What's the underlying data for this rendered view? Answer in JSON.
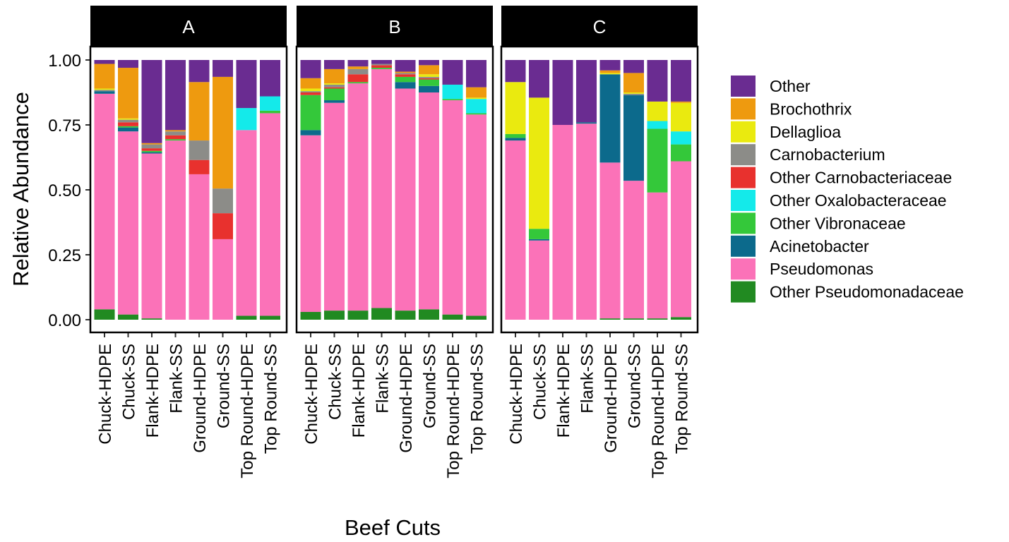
{
  "chart_data": {
    "type": "bar",
    "stacked": true,
    "xlabel": "Beef Cuts",
    "ylabel": "Relative Abundance",
    "ylim": [
      0,
      1
    ],
    "y_ticks": [
      "0.00",
      "0.25",
      "0.50",
      "0.75",
      "1.00"
    ],
    "y_tick_values": [
      0,
      0.25,
      0.5,
      0.75,
      1.0
    ],
    "legend_position": "right",
    "categories": [
      "Chuck-HDPE",
      "Chuck-SS",
      "Flank-HDPE",
      "Flank-SS",
      "Ground-HDPE",
      "Ground-SS",
      "Top Round-HDPE",
      "Top Round-SS"
    ],
    "legend": [
      {
        "name": "Other",
        "color": "#6A2C91"
      },
      {
        "name": "Brochothrix",
        "color": "#EE9A0F"
      },
      {
        "name": "Dellaglioa",
        "color": "#EAEA0F"
      },
      {
        "name": "Carnobacterium",
        "color": "#8C8C88"
      },
      {
        "name": "Other Carnobacteriaceae",
        "color": "#E8312E"
      },
      {
        "name": "Other Oxalobacteraceae",
        "color": "#14EAEA"
      },
      {
        "name": "Other Vibronaceae",
        "color": "#34C83A"
      },
      {
        "name": "Acinetobacter",
        "color": "#0C6A8C"
      },
      {
        "name": "Pseudomonas",
        "color": "#FB72B8"
      },
      {
        "name": "Other Pseudomonadaceae",
        "color": "#218A21"
      }
    ],
    "stack_order_bottom_to_top": [
      "Other Pseudomonadaceae",
      "Pseudomonas",
      "Acinetobacter",
      "Other Vibronaceae",
      "Other Oxalobacteraceae",
      "Other Carnobacteriaceae",
      "Carnobacterium",
      "Dellaglioa",
      "Brochothrix",
      "Other"
    ],
    "panels": [
      {
        "label": "A",
        "bars": [
          {
            "Other Pseudomonadaceae": 0.04,
            "Pseudomonas": 0.83,
            "Acinetobacter": 0.01,
            "Other Vibronaceae": 0.0,
            "Other Oxalobacteraceae": 0.0,
            "Other Carnobacteriaceae": 0.0,
            "Carnobacterium": 0.005,
            "Dellaglioa": 0.005,
            "Brochothrix": 0.095,
            "Other": 0.015
          },
          {
            "Other Pseudomonadaceae": 0.02,
            "Pseudomonas": 0.705,
            "Acinetobacter": 0.015,
            "Other Vibronaceae": 0.005,
            "Other Oxalobacteraceae": 0.0,
            "Other Carnobacteriaceae": 0.015,
            "Carnobacterium": 0.01,
            "Dellaglioa": 0.005,
            "Brochothrix": 0.195,
            "Other": 0.03
          },
          {
            "Other Pseudomonadaceae": 0.005,
            "Pseudomonas": 0.635,
            "Acinetobacter": 0.005,
            "Other Vibronaceae": 0.005,
            "Other Oxalobacteraceae": 0.0,
            "Other Carnobacteriaceae": 0.01,
            "Carnobacterium": 0.015,
            "Dellaglioa": 0.0,
            "Brochothrix": 0.005,
            "Other": 0.32
          },
          {
            "Other Pseudomonadaceae": 0.0,
            "Pseudomonas": 0.69,
            "Acinetobacter": 0.0,
            "Other Vibronaceae": 0.005,
            "Other Oxalobacteraceae": 0.0,
            "Other Carnobacteriaceae": 0.015,
            "Carnobacterium": 0.015,
            "Dellaglioa": 0.0,
            "Brochothrix": 0.005,
            "Other": 0.27
          },
          {
            "Other Pseudomonadaceae": 0.0,
            "Pseudomonas": 0.56,
            "Acinetobacter": 0.0,
            "Other Vibronaceae": 0.0,
            "Other Oxalobacteraceae": 0.0,
            "Other Carnobacteriaceae": 0.055,
            "Carnobacterium": 0.075,
            "Dellaglioa": 0.0,
            "Brochothrix": 0.225,
            "Other": 0.085
          },
          {
            "Other Pseudomonadaceae": 0.0,
            "Pseudomonas": 0.31,
            "Acinetobacter": 0.0,
            "Other Vibronaceae": 0.0,
            "Other Oxalobacteraceae": 0.0,
            "Other Carnobacteriaceae": 0.1,
            "Carnobacterium": 0.095,
            "Dellaglioa": 0.0,
            "Brochothrix": 0.43,
            "Other": 0.065
          },
          {
            "Other Pseudomonadaceae": 0.015,
            "Pseudomonas": 0.715,
            "Acinetobacter": 0.0,
            "Other Vibronaceae": 0.0,
            "Other Oxalobacteraceae": 0.085,
            "Other Carnobacteriaceae": 0.0,
            "Carnobacterium": 0.0,
            "Dellaglioa": 0.0,
            "Brochothrix": 0.0,
            "Other": 0.185
          },
          {
            "Other Pseudomonadaceae": 0.015,
            "Pseudomonas": 0.78,
            "Acinetobacter": 0.0,
            "Other Vibronaceae": 0.01,
            "Other Oxalobacteraceae": 0.055,
            "Other Carnobacteriaceae": 0.0,
            "Carnobacterium": 0.0,
            "Dellaglioa": 0.0,
            "Brochothrix": 0.0,
            "Other": 0.14
          }
        ]
      },
      {
        "label": "B",
        "bars": [
          {
            "Other Pseudomonadaceae": 0.03,
            "Pseudomonas": 0.68,
            "Acinetobacter": 0.02,
            "Other Vibronaceae": 0.135,
            "Other Oxalobacteraceae": 0.0,
            "Other Carnobacteriaceae": 0.01,
            "Carnobacterium": 0.005,
            "Dellaglioa": 0.01,
            "Brochothrix": 0.04,
            "Other": 0.07
          },
          {
            "Other Pseudomonadaceae": 0.035,
            "Pseudomonas": 0.8,
            "Acinetobacter": 0.01,
            "Other Vibronaceae": 0.045,
            "Other Oxalobacteraceae": 0.0,
            "Other Carnobacteriaceae": 0.005,
            "Carnobacterium": 0.01,
            "Dellaglioa": 0.005,
            "Brochothrix": 0.055,
            "Other": 0.035
          },
          {
            "Other Pseudomonadaceae": 0.035,
            "Pseudomonas": 0.875,
            "Acinetobacter": 0.0,
            "Other Vibronaceae": 0.005,
            "Other Oxalobacteraceae": 0.0,
            "Other Carnobacteriaceae": 0.03,
            "Carnobacterium": 0.02,
            "Dellaglioa": 0.0,
            "Brochothrix": 0.01,
            "Other": 0.025
          },
          {
            "Other Pseudomonadaceae": 0.045,
            "Pseudomonas": 0.92,
            "Acinetobacter": 0.0,
            "Other Vibronaceae": 0.005,
            "Other Oxalobacteraceae": 0.0,
            "Other Carnobacteriaceae": 0.01,
            "Carnobacterium": 0.005,
            "Dellaglioa": 0.0,
            "Brochothrix": 0.0,
            "Other": 0.015
          },
          {
            "Other Pseudomonadaceae": 0.035,
            "Pseudomonas": 0.855,
            "Acinetobacter": 0.025,
            "Other Vibronaceae": 0.02,
            "Other Oxalobacteraceae": 0.0,
            "Other Carnobacteriaceae": 0.01,
            "Carnobacterium": 0.005,
            "Dellaglioa": 0.0,
            "Brochothrix": 0.005,
            "Other": 0.045
          },
          {
            "Other Pseudomonadaceae": 0.04,
            "Pseudomonas": 0.835,
            "Acinetobacter": 0.025,
            "Other Vibronaceae": 0.025,
            "Other Oxalobacteraceae": 0.0,
            "Other Carnobacteriaceae": 0.005,
            "Carnobacterium": 0.005,
            "Dellaglioa": 0.01,
            "Brochothrix": 0.035,
            "Other": 0.02
          },
          {
            "Other Pseudomonadaceae": 0.02,
            "Pseudomonas": 0.825,
            "Acinetobacter": 0.0,
            "Other Vibronaceae": 0.005,
            "Other Oxalobacteraceae": 0.055,
            "Other Carnobacteriaceae": 0.0,
            "Carnobacterium": 0.0,
            "Dellaglioa": 0.0,
            "Brochothrix": 0.0,
            "Other": 0.095
          },
          {
            "Other Pseudomonadaceae": 0.015,
            "Pseudomonas": 0.775,
            "Acinetobacter": 0.0,
            "Other Vibronaceae": 0.005,
            "Other Oxalobacteraceae": 0.055,
            "Other Carnobacteriaceae": 0.0,
            "Carnobacterium": 0.0,
            "Dellaglioa": 0.005,
            "Brochothrix": 0.04,
            "Other": 0.105
          }
        ]
      },
      {
        "label": "C",
        "bars": [
          {
            "Other Pseudomonadaceae": 0.0,
            "Pseudomonas": 0.69,
            "Acinetobacter": 0.01,
            "Other Vibronaceae": 0.015,
            "Other Oxalobacteraceae": 0.0,
            "Other Carnobacteriaceae": 0.0,
            "Carnobacterium": 0.0,
            "Dellaglioa": 0.2,
            "Brochothrix": 0.0,
            "Other": 0.085
          },
          {
            "Other Pseudomonadaceae": 0.0,
            "Pseudomonas": 0.305,
            "Acinetobacter": 0.005,
            "Other Vibronaceae": 0.04,
            "Other Oxalobacteraceae": 0.0,
            "Other Carnobacteriaceae": 0.0,
            "Carnobacterium": 0.0,
            "Dellaglioa": 0.505,
            "Brochothrix": 0.0,
            "Other": 0.145
          },
          {
            "Other Pseudomonadaceae": 0.0,
            "Pseudomonas": 0.75,
            "Acinetobacter": 0.0,
            "Other Vibronaceae": 0.0,
            "Other Oxalobacteraceae": 0.0,
            "Other Carnobacteriaceae": 0.0,
            "Carnobacterium": 0.0,
            "Dellaglioa": 0.0,
            "Brochothrix": 0.0,
            "Other": 0.25
          },
          {
            "Other Pseudomonadaceae": 0.0,
            "Pseudomonas": 0.755,
            "Acinetobacter": 0.005,
            "Other Vibronaceae": 0.0,
            "Other Oxalobacteraceae": 0.0,
            "Other Carnobacteriaceae": 0.0,
            "Carnobacterium": 0.0,
            "Dellaglioa": 0.0,
            "Brochothrix": 0.0,
            "Other": 0.24
          },
          {
            "Other Pseudomonadaceae": 0.005,
            "Pseudomonas": 0.6,
            "Acinetobacter": 0.34,
            "Other Vibronaceae": 0.0,
            "Other Oxalobacteraceae": 0.0,
            "Other Carnobacteriaceae": 0.0,
            "Carnobacterium": 0.0,
            "Dellaglioa": 0.005,
            "Brochothrix": 0.01,
            "Other": 0.04
          },
          {
            "Other Pseudomonadaceae": 0.005,
            "Pseudomonas": 0.53,
            "Acinetobacter": 0.33,
            "Other Vibronaceae": 0.0,
            "Other Oxalobacteraceae": 0.0,
            "Other Carnobacteriaceae": 0.0,
            "Carnobacterium": 0.005,
            "Dellaglioa": 0.005,
            "Brochothrix": 0.075,
            "Other": 0.05
          },
          {
            "Other Pseudomonadaceae": 0.005,
            "Pseudomonas": 0.485,
            "Acinetobacter": 0.0,
            "Other Vibronaceae": 0.245,
            "Other Oxalobacteraceae": 0.03,
            "Other Carnobacteriaceae": 0.0,
            "Carnobacterium": 0.0,
            "Dellaglioa": 0.075,
            "Brochothrix": 0.0,
            "Other": 0.16
          },
          {
            "Other Pseudomonadaceae": 0.01,
            "Pseudomonas": 0.6,
            "Acinetobacter": 0.0,
            "Other Vibronaceae": 0.065,
            "Other Oxalobacteraceae": 0.05,
            "Other Carnobacteriaceae": 0.0,
            "Carnobacterium": 0.0,
            "Dellaglioa": 0.11,
            "Brochothrix": 0.005,
            "Other": 0.16
          }
        ]
      }
    ]
  }
}
